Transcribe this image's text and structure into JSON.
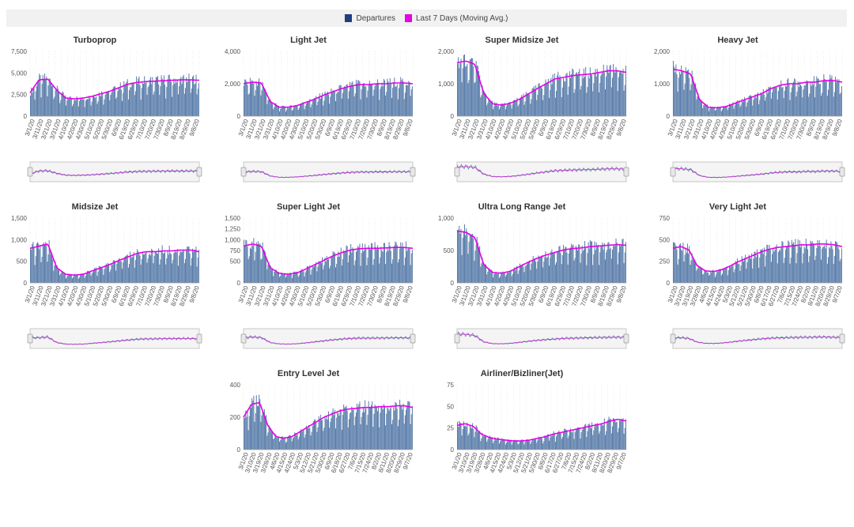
{
  "legend": {
    "departures_label": "Departures",
    "moving_avg_label": "Last 7 Days (Moving Avg.)",
    "departures_color": "#1f3f7f",
    "moving_avg_color": "#e600e6"
  },
  "chart_data": [
    {
      "type": "bar",
      "title": "Turboprop",
      "ylim": [
        0,
        7500
      ],
      "yticks": [
        "0",
        "2,500",
        "5,000",
        "7,500"
      ],
      "xticks": [
        "3/1/20",
        "3/11/20",
        "3/21/20",
        "3/31/20",
        "4/10/20",
        "4/20/20",
        "4/30/20",
        "5/10/20",
        "5/20/20",
        "5/30/20",
        "6/9/20",
        "6/19/20",
        "6/29/20",
        "7/10/20",
        "7/20/20",
        "7/30/20",
        "8/9/20",
        "8/19/20",
        "8/29/20",
        "9/8/20"
      ],
      "moving_avg": [
        2700,
        4200,
        4300,
        3000,
        2100,
        2000,
        2100,
        2300,
        2600,
        2900,
        3300,
        3700,
        3900,
        4000,
        4050,
        4100,
        4150,
        4200,
        4200,
        4150
      ]
    },
    {
      "type": "bar",
      "title": "Light Jet",
      "ylim": [
        0,
        4000
      ],
      "yticks": [
        "0",
        "2,000",
        "4,000"
      ],
      "xticks": [
        "3/1/20",
        "3/11/20",
        "3/21/20",
        "3/31/20",
        "4/10/20",
        "4/20/20",
        "4/30/20",
        "5/10/20",
        "5/20/20",
        "5/30/20",
        "6/9/20",
        "6/19/20",
        "6/29/20",
        "7/10/20",
        "7/20/20",
        "7/30/20",
        "8/9/20",
        "8/19/20",
        "8/29/20",
        "9/8/20"
      ],
      "moving_avg": [
        2000,
        2100,
        2050,
        900,
        550,
        550,
        650,
        850,
        1050,
        1300,
        1500,
        1700,
        1850,
        1950,
        1950,
        2000,
        2000,
        2050,
        2050,
        2000
      ]
    },
    {
      "type": "bar",
      "title": "Super Midsize Jet",
      "ylim": [
        0,
        2000
      ],
      "yticks": [
        "0",
        "1,000",
        "2,000"
      ],
      "xticks": [
        "3/1/20",
        "3/11/20",
        "3/21/20",
        "3/31/20",
        "4/10/20",
        "4/20/20",
        "4/30/20",
        "5/10/20",
        "5/20/20",
        "5/30/20",
        "6/9/20",
        "6/19/20",
        "6/29/20",
        "7/10/20",
        "7/20/20",
        "7/30/20",
        "8/9/20",
        "8/19/20",
        "8/29/20",
        "9/8/20"
      ],
      "moving_avg": [
        1650,
        1700,
        1600,
        700,
        380,
        340,
        400,
        520,
        680,
        850,
        1000,
        1150,
        1200,
        1250,
        1280,
        1300,
        1350,
        1400,
        1400,
        1350
      ]
    },
    {
      "type": "bar",
      "title": "Heavy Jet",
      "ylim": [
        0,
        2000
      ],
      "yticks": [
        "0",
        "1,000",
        "2,000"
      ],
      "xticks": [
        "3/1/20",
        "3/11/20",
        "3/21/20",
        "3/31/20",
        "4/10/20",
        "4/20/20",
        "4/30/20",
        "5/10/20",
        "5/20/20",
        "5/30/20",
        "6/9/20",
        "6/19/20",
        "6/29/20",
        "7/10/20",
        "7/20/20",
        "7/30/20",
        "8/9/20",
        "8/19/20",
        "8/29/20",
        "9/8/20"
      ],
      "moving_avg": [
        1450,
        1400,
        1300,
        500,
        270,
        260,
        300,
        400,
        500,
        600,
        700,
        850,
        950,
        1000,
        1000,
        1050,
        1050,
        1100,
        1100,
        1050
      ]
    },
    {
      "type": "bar",
      "title": "Midsize Jet",
      "ylim": [
        0,
        1500
      ],
      "yticks": [
        "0",
        "500",
        "1,000",
        "1,500"
      ],
      "xticks": [
        "3/1/20",
        "3/11/20",
        "3/21/20",
        "3/31/20",
        "4/10/20",
        "4/20/20",
        "4/30/20",
        "5/10/20",
        "5/20/20",
        "5/30/20",
        "6/9/20",
        "6/19/20",
        "6/29/20",
        "7/10/20",
        "7/20/20",
        "7/30/20",
        "8/9/20",
        "8/19/20",
        "8/29/20",
        "9/8/20"
      ],
      "moving_avg": [
        800,
        850,
        900,
        350,
        200,
        180,
        200,
        280,
        350,
        430,
        520,
        600,
        680,
        720,
        720,
        740,
        740,
        760,
        760,
        720
      ]
    },
    {
      "type": "bar",
      "title": "Super Light Jet",
      "ylim": [
        0,
        1500
      ],
      "yticks": [
        "0",
        "500",
        "750",
        "1,000",
        "1,250",
        "1,500"
      ],
      "xticks": [
        "3/1/20",
        "3/11/20",
        "3/21/20",
        "3/31/20",
        "4/10/20",
        "4/20/20",
        "4/30/20",
        "5/10/20",
        "5/20/20",
        "5/30/20",
        "6/9/20",
        "6/19/20",
        "6/29/20",
        "7/10/20",
        "7/20/20",
        "7/30/20",
        "8/9/20",
        "8/19/20",
        "8/29/20",
        "9/8/20"
      ],
      "moving_avg": [
        850,
        900,
        850,
        350,
        220,
        200,
        230,
        320,
        420,
        520,
        620,
        700,
        760,
        790,
        800,
        800,
        810,
        820,
        820,
        800
      ]
    },
    {
      "type": "bar",
      "title": "Ultra Long Range Jet",
      "ylim": [
        0,
        1000
      ],
      "yticks": [
        "0",
        "500",
        "1,000"
      ],
      "xticks": [
        "3/1/20",
        "3/11/20",
        "3/21/20",
        "3/31/20",
        "4/10/20",
        "4/20/20",
        "4/30/20",
        "5/10/20",
        "5/20/20",
        "5/30/20",
        "6/9/20",
        "6/19/20",
        "6/29/20",
        "7/10/20",
        "7/20/20",
        "7/30/20",
        "8/9/20",
        "8/19/20",
        "8/29/20",
        "9/8/20"
      ],
      "moving_avg": [
        800,
        780,
        700,
        280,
        160,
        150,
        180,
        250,
        320,
        380,
        430,
        470,
        510,
        530,
        540,
        560,
        570,
        580,
        590,
        580
      ]
    },
    {
      "type": "bar",
      "title": "Very Light Jet",
      "ylim": [
        0,
        750
      ],
      "yticks": [
        "0",
        "250",
        "500",
        "750"
      ],
      "xticks": [
        "3/1/20",
        "3/10/20",
        "3/19/20",
        "3/28/20",
        "4/6/20",
        "4/15/20",
        "4/24/20",
        "5/3/20",
        "5/12/20",
        "5/21/20",
        "5/30/20",
        "6/8/20",
        "6/17/20",
        "6/27/20",
        "7/6/20",
        "7/15/20",
        "7/24/20",
        "8/2/20",
        "8/11/20",
        "8/20/20",
        "8/29/20",
        "9/7/20"
      ],
      "moving_avg": [
        400,
        420,
        380,
        200,
        140,
        130,
        150,
        190,
        240,
        280,
        320,
        360,
        390,
        410,
        420,
        430,
        440,
        440,
        450,
        450,
        440,
        420
      ]
    },
    {
      "type": "bar",
      "title": "Entry Level Jet",
      "ylim": [
        0,
        400
      ],
      "yticks": [
        "0",
        "200",
        "400"
      ],
      "xticks": [
        "3/1/20",
        "3/10/20",
        "3/19/20",
        "3/28/20",
        "4/6/20",
        "4/15/20",
        "4/24/20",
        "5/3/20",
        "5/12/20",
        "5/21/20",
        "5/30/20",
        "6/9/20",
        "6/18/20",
        "6/27/20",
        "7/6/20",
        "7/15/20",
        "7/24/20",
        "8/2/20",
        "8/11/20",
        "8/20/20",
        "8/29/20",
        "9/7/20"
      ],
      "moving_avg": [
        200,
        280,
        290,
        150,
        80,
        70,
        80,
        110,
        140,
        170,
        200,
        220,
        240,
        250,
        255,
        260,
        260,
        265,
        265,
        270,
        270,
        260
      ]
    },
    {
      "type": "bar",
      "title": "Airliner/Bizliner(Jet)",
      "ylim": [
        0,
        75
      ],
      "yticks": [
        "0",
        "25",
        "50",
        "75"
      ],
      "xticks": [
        "3/1/20",
        "3/10/20",
        "3/19/20",
        "3/28/20",
        "4/6/20",
        "4/15/20",
        "4/24/20",
        "5/3/20",
        "5/12/20",
        "5/21/20",
        "5/30/20",
        "6/8/20",
        "6/17/20",
        "6/27/20",
        "7/6/20",
        "7/15/20",
        "7/24/20",
        "8/2/20",
        "8/11/20",
        "8/20/20",
        "8/29/20",
        "9/7/20"
      ],
      "moving_avg": [
        28,
        30,
        27,
        18,
        14,
        12,
        11,
        10,
        10,
        11,
        13,
        15,
        18,
        20,
        22,
        24,
        26,
        28,
        30,
        33,
        35,
        33
      ]
    }
  ]
}
